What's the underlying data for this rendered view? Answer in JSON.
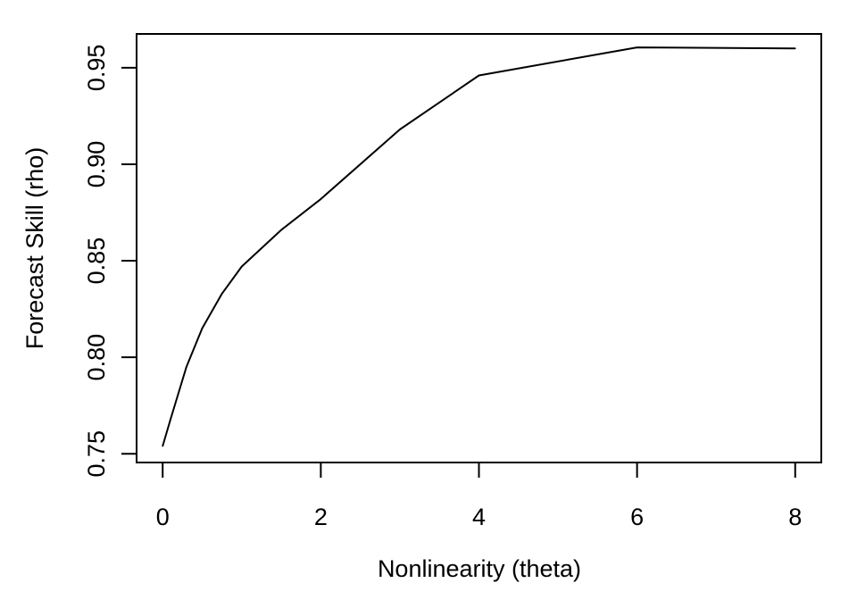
{
  "chart_data": {
    "type": "line",
    "title": "",
    "xlabel": "Nonlinearity (theta)",
    "ylabel": "Forecast Skill (rho)",
    "xlim": [
      -0.33,
      8.33
    ],
    "ylim": [
      0.7455,
      0.9675
    ],
    "x_ticks": [
      0,
      2,
      4,
      6,
      8
    ],
    "x_tick_labels": [
      "0",
      "2",
      "4",
      "6",
      "8"
    ],
    "y_ticks": [
      0.75,
      0.8,
      0.85,
      0.9,
      0.95
    ],
    "y_tick_labels": [
      "0.75",
      "0.80",
      "0.85",
      "0.90",
      "0.95"
    ],
    "grid": false,
    "legend": "none",
    "line_color": "#000000",
    "series": [
      {
        "x": [
          0,
          0.1,
          0.3,
          0.5,
          0.75,
          1,
          1.5,
          2,
          3,
          4,
          6,
          8
        ],
        "values": [
          0.754,
          0.768,
          0.795,
          0.815,
          0.833,
          0.847,
          0.866,
          0.882,
          0.918,
          0.946,
          0.9605,
          0.96
        ]
      }
    ]
  }
}
